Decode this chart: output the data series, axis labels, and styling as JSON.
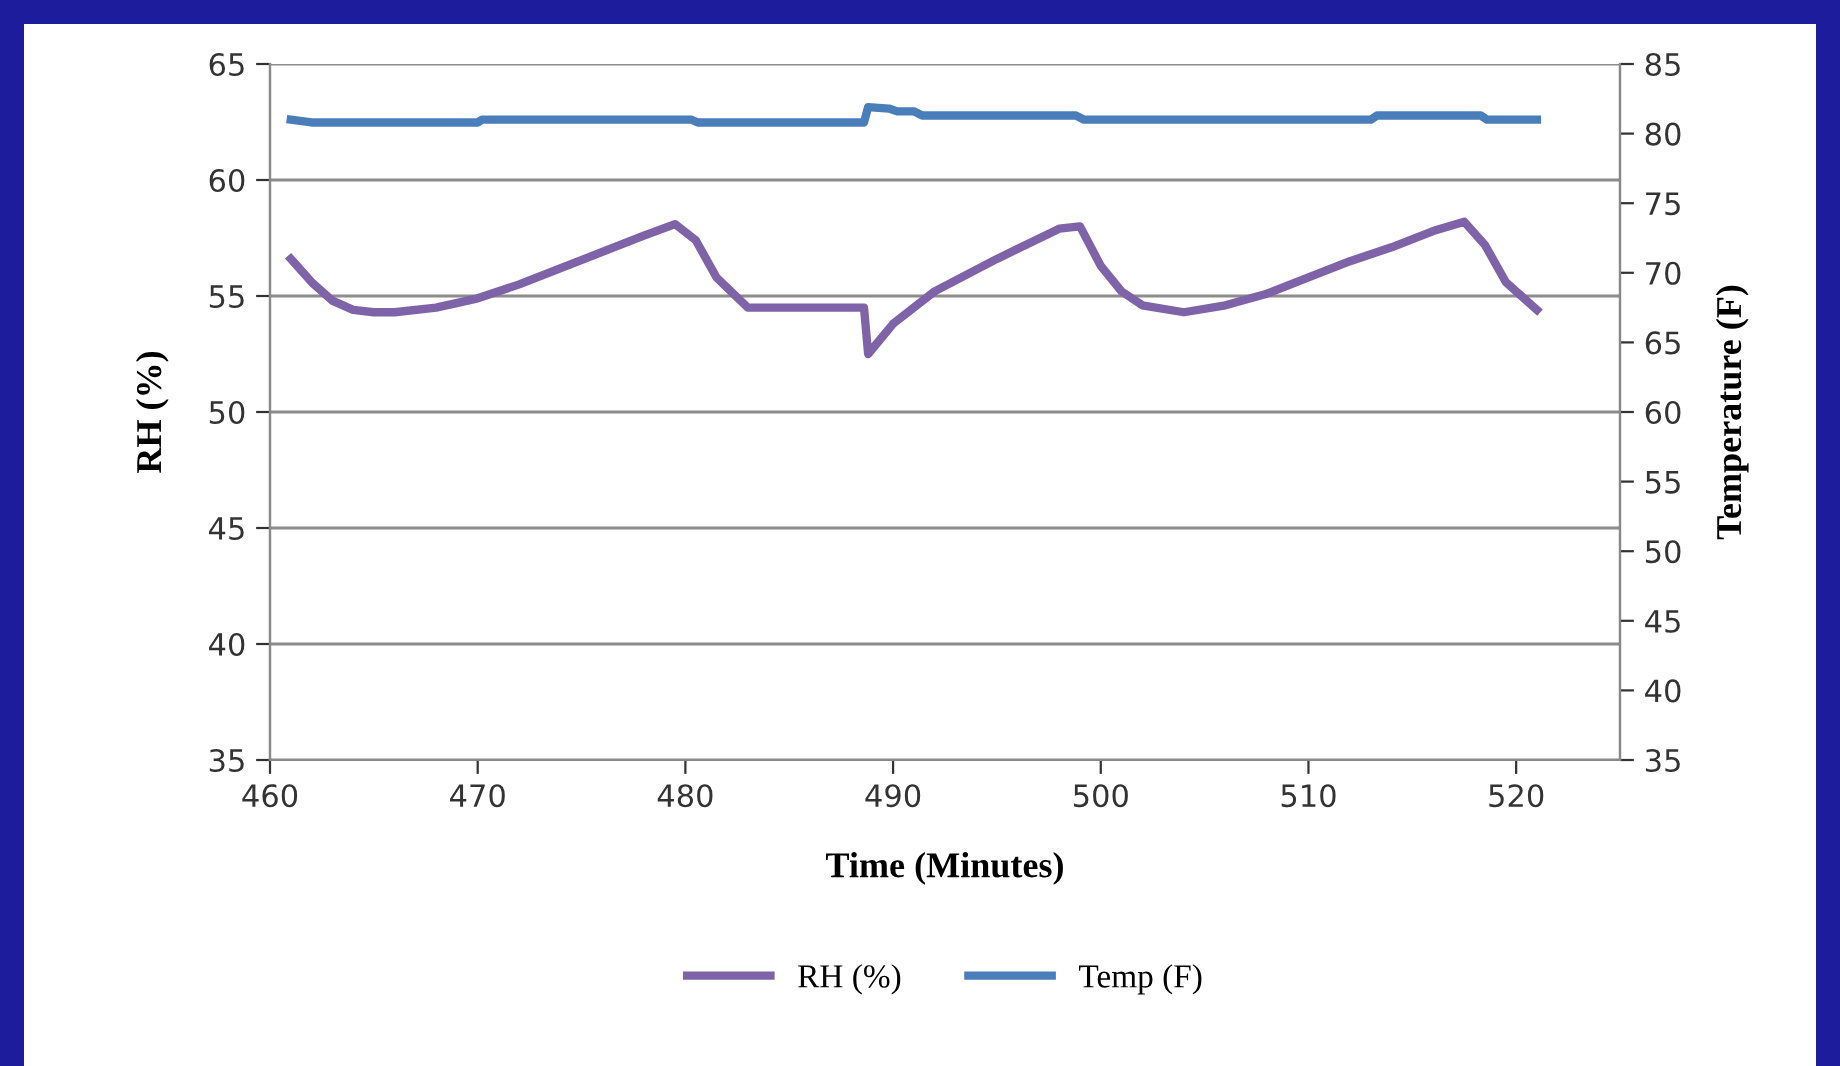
{
  "chart_data": {
    "type": "line",
    "xlabel": "Time (Minutes)",
    "ylabel": "RH (%)",
    "y2label": "Temperature (F)",
    "xlim": [
      460,
      525
    ],
    "xticks": [
      460,
      470,
      480,
      490,
      500,
      510,
      520
    ],
    "ylim": [
      35,
      65
    ],
    "yticks": [
      35,
      40,
      45,
      50,
      55,
      60,
      65
    ],
    "y2lim": [
      35,
      85
    ],
    "y2ticks": [
      35,
      40,
      45,
      50,
      55,
      60,
      65,
      70,
      75,
      80,
      85
    ],
    "grid": "y",
    "legend": "bottom",
    "line_style": "solid",
    "marker": "none",
    "series": [
      {
        "name": "RH (%)",
        "color": "#7f63a8",
        "x": [
          461,
          462,
          463,
          464,
          465,
          466,
          468,
          470,
          472,
          474,
          476,
          478,
          479.5,
          480.5,
          481.5,
          483,
          485,
          488.6,
          488.8,
          490,
          492,
          495,
          498,
          499,
          500,
          501,
          502,
          504,
          506,
          508,
          510,
          512,
          514,
          516,
          517.5,
          518.5,
          519.5,
          520.5,
          521
        ],
        "values": [
          56.6,
          55.6,
          54.8,
          54.4,
          54.3,
          54.3,
          54.5,
          54.9,
          55.5,
          56.2,
          56.9,
          57.6,
          58.1,
          57.4,
          55.8,
          54.5,
          54.5,
          54.5,
          52.5,
          53.8,
          55.2,
          56.6,
          57.9,
          58.0,
          56.3,
          55.2,
          54.6,
          54.3,
          54.6,
          55.1,
          55.8,
          56.5,
          57.1,
          57.8,
          58.2,
          57.2,
          55.6,
          54.8,
          54.4
        ]
      },
      {
        "name": "Temp (F)",
        "color": "#4a7ebb",
        "axis": "y2",
        "x": [
          461,
          462,
          470,
          470.2,
          480.3,
          480.6,
          488.6,
          488.8,
          489.8,
          490.2,
          491,
          491.4,
          498.8,
          499.2,
          513,
          513.3,
          518.3,
          518.6,
          521
        ],
        "values": [
          81.0,
          80.8,
          80.8,
          81.0,
          81.0,
          80.8,
          80.8,
          81.9,
          81.8,
          81.6,
          81.6,
          81.3,
          81.3,
          81.0,
          81.0,
          81.3,
          81.3,
          81.0,
          81.0
        ]
      }
    ]
  }
}
